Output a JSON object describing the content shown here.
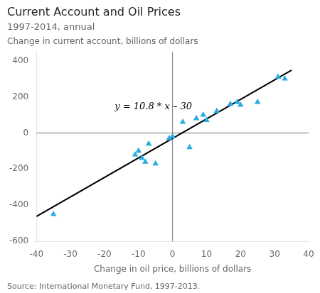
{
  "chart_data": {
    "type": "scatter",
    "title": "Current Account and Oil Prices",
    "subtitle": "1997-2014, annual",
    "ylabel": "Change in current account, billions of dollars",
    "xlabel": "Change in oil price, billions of dollars",
    "source": "Source: International Monetary Fund, 1997-2013.",
    "annotations": [
      {
        "text": "y = 10.8 * x – 30",
        "x": -17,
        "y": 130
      }
    ],
    "xlim": [
      -40,
      40
    ],
    "ylim": [
      -600,
      450
    ],
    "xticks": [
      -40,
      -30,
      -20,
      -10,
      0,
      10,
      20,
      30,
      40
    ],
    "yticks": [
      -600,
      -400,
      -200,
      0,
      200,
      400
    ],
    "grid": false,
    "hline": 0,
    "vline": 0,
    "series": [
      {
        "type": "line",
        "color": "#000000",
        "x": [
          -40,
          35
        ],
        "values": [
          -462,
          348
        ]
      },
      {
        "type": "scatter",
        "color": "#29ABE2",
        "marker": "triangle",
        "x": [
          -35,
          -11,
          -10,
          -9,
          -8,
          -7,
          -5,
          -1,
          0,
          3,
          5,
          7,
          9,
          10,
          13,
          17,
          19,
          20,
          25,
          31,
          33
        ],
        "values": [
          -450,
          -120,
          -100,
          -140,
          -160,
          -60,
          -170,
          -30,
          -20,
          60,
          -80,
          80,
          100,
          70,
          120,
          160,
          170,
          155,
          170,
          310,
          300
        ]
      }
    ]
  }
}
